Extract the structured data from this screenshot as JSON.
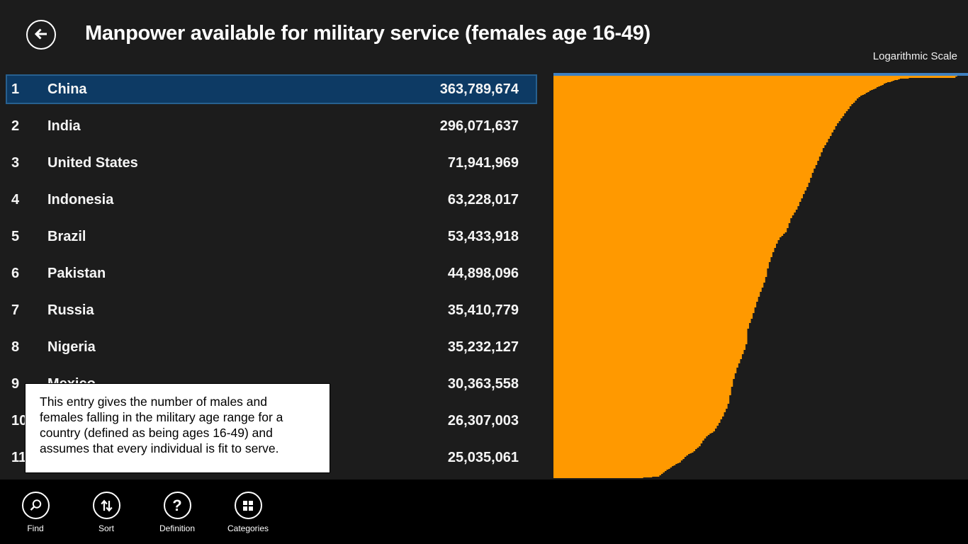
{
  "header": {
    "title": "Manpower available for military service (females age 16-49)",
    "back_icon": "back-arrow"
  },
  "chart": {
    "scale_label": "Logarithmic Scale",
    "orange": "#ff9900",
    "axis_blue": "#3f80c0"
  },
  "list": {
    "selected_bg": "#0d3a64",
    "rows": [
      {
        "rank": "1",
        "name": "China",
        "value": "363,789,674",
        "selected": true
      },
      {
        "rank": "2",
        "name": "India",
        "value": "296,071,637",
        "selected": false
      },
      {
        "rank": "3",
        "name": "United States",
        "value": "71,941,969",
        "selected": false
      },
      {
        "rank": "4",
        "name": "Indonesia",
        "value": "63,228,017",
        "selected": false
      },
      {
        "rank": "5",
        "name": "Brazil",
        "value": "53,433,918",
        "selected": false
      },
      {
        "rank": "6",
        "name": "Pakistan",
        "value": "44,898,096",
        "selected": false
      },
      {
        "rank": "7",
        "name": "Russia",
        "value": "35,410,779",
        "selected": false
      },
      {
        "rank": "8",
        "name": "Nigeria",
        "value": "35,232,127",
        "selected": false
      },
      {
        "rank": "9",
        "name": "Mexico",
        "value": "30,363,558",
        "selected": false
      },
      {
        "rank": "10",
        "name": "",
        "value": "26,307,003",
        "selected": false
      },
      {
        "rank": "11",
        "name": "",
        "value": "25,035,061",
        "selected": false
      }
    ]
  },
  "tooltip": {
    "lines": [
      "This entry gives the number of males and",
      "females falling in the military age range for a",
      "country (defined as being ages 16-49) and",
      "assumes that every individual is fit to serve."
    ]
  },
  "appbar": {
    "buttons": [
      {
        "label": "Find",
        "icon": "search-icon"
      },
      {
        "label": "Sort",
        "icon": "sort-arrows-icon"
      },
      {
        "label": "Definition",
        "icon": "question-icon"
      },
      {
        "label": "Categories",
        "icon": "grid-icon"
      }
    ]
  },
  "chart_data": {
    "type": "area",
    "title": "Manpower available for military service (females age 16-49)",
    "scale": "logarithmic",
    "orientation": "top-anchored area, bar depth proportional to log(value), rank 1 at left",
    "legend": "none",
    "n_categories": 231,
    "categories": [
      "China",
      "India",
      "United States",
      "Indonesia",
      "Brazil",
      "Pakistan",
      "Russia",
      "Nigeria",
      "Mexico",
      "rank 10 (name occluded)",
      "rank 11 (name occluded)"
    ],
    "values": [
      363789674,
      296071637,
      71941969,
      63228017,
      53433918,
      44898096,
      35410779,
      35232127,
      30363558,
      26307003,
      25035061
    ],
    "boundary_points": [
      [
        0.0,
        1.0
      ],
      [
        0.203,
        1.0
      ],
      [
        0.255,
        0.996
      ],
      [
        0.275,
        0.979
      ],
      [
        0.292,
        0.968
      ],
      [
        0.306,
        0.96
      ],
      [
        0.32,
        0.945
      ],
      [
        0.337,
        0.935
      ],
      [
        0.354,
        0.919
      ],
      [
        0.369,
        0.896
      ],
      [
        0.388,
        0.884
      ],
      [
        0.397,
        0.868
      ],
      [
        0.409,
        0.847
      ],
      [
        0.421,
        0.82
      ],
      [
        0.427,
        0.792
      ],
      [
        0.434,
        0.757
      ],
      [
        0.444,
        0.724
      ],
      [
        0.455,
        0.697
      ],
      [
        0.465,
        0.671
      ],
      [
        0.47,
        0.625
      ],
      [
        0.48,
        0.599
      ],
      [
        0.489,
        0.569
      ],
      [
        0.499,
        0.539
      ],
      [
        0.511,
        0.509
      ],
      [
        0.52,
        0.467
      ],
      [
        0.532,
        0.433
      ],
      [
        0.545,
        0.405
      ],
      [
        0.562,
        0.387
      ],
      [
        0.574,
        0.352
      ],
      [
        0.588,
        0.331
      ],
      [
        0.602,
        0.298
      ],
      [
        0.615,
        0.271
      ],
      [
        0.626,
        0.239
      ],
      [
        0.636,
        0.217
      ],
      [
        0.651,
        0.181
      ],
      [
        0.668,
        0.151
      ],
      [
        0.684,
        0.121
      ],
      [
        0.701,
        0.097
      ],
      [
        0.718,
        0.074
      ],
      [
        0.737,
        0.053
      ],
      [
        0.769,
        0.035
      ],
      [
        0.803,
        0.018
      ],
      [
        0.838,
        0.007
      ],
      [
        0.887,
        0.005
      ],
      [
        0.969,
        0.005
      ],
      [
        0.973,
        0.0
      ],
      [
        1.0,
        0.0
      ]
    ]
  }
}
